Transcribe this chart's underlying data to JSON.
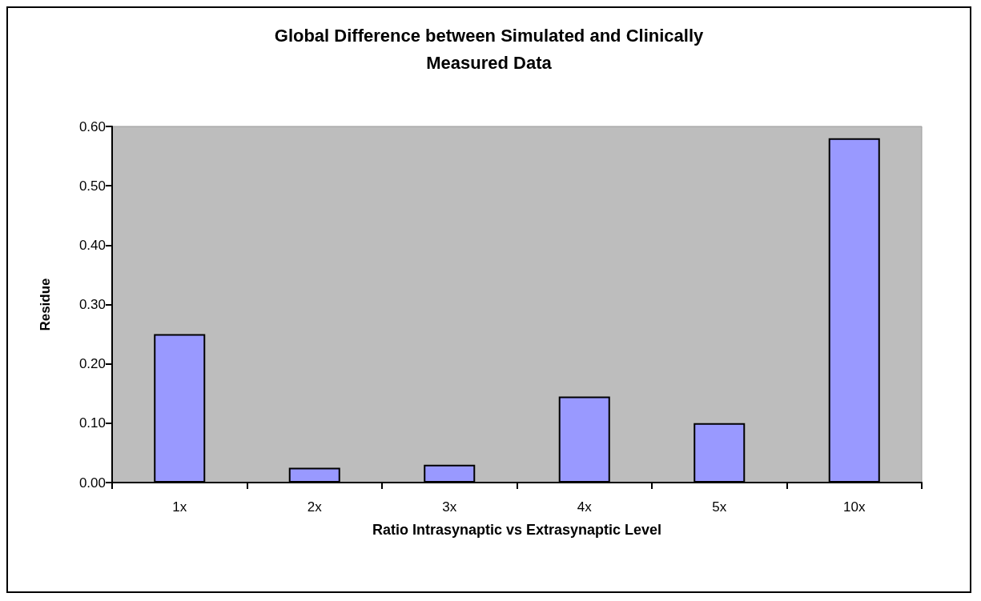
{
  "chart_data": {
    "type": "bar",
    "title": "Global Difference between Simulated and Clinically\nMeasured Data",
    "xlabel": "Ratio Intrasynaptic vs Extrasynaptic Level",
    "ylabel": "Residue",
    "categories": [
      "1x",
      "2x",
      "3x",
      "4x",
      "5x",
      "10x"
    ],
    "values": [
      0.25,
      0.025,
      0.03,
      0.145,
      0.1,
      0.58
    ],
    "color": "#9999ff",
    "ylim": [
      0,
      0.6
    ],
    "yticks": [
      {
        "value": 0,
        "label": "0.00"
      },
      {
        "value": 0.1,
        "label": "0.10"
      },
      {
        "value": 0.2,
        "label": "0.20"
      },
      {
        "value": 0.3,
        "label": "0.30"
      },
      {
        "value": 0.4,
        "label": "0.40"
      },
      {
        "value": 0.5,
        "label": "0.50"
      },
      {
        "value": 0.6,
        "label": "0.60"
      }
    ],
    "grid": false
  }
}
